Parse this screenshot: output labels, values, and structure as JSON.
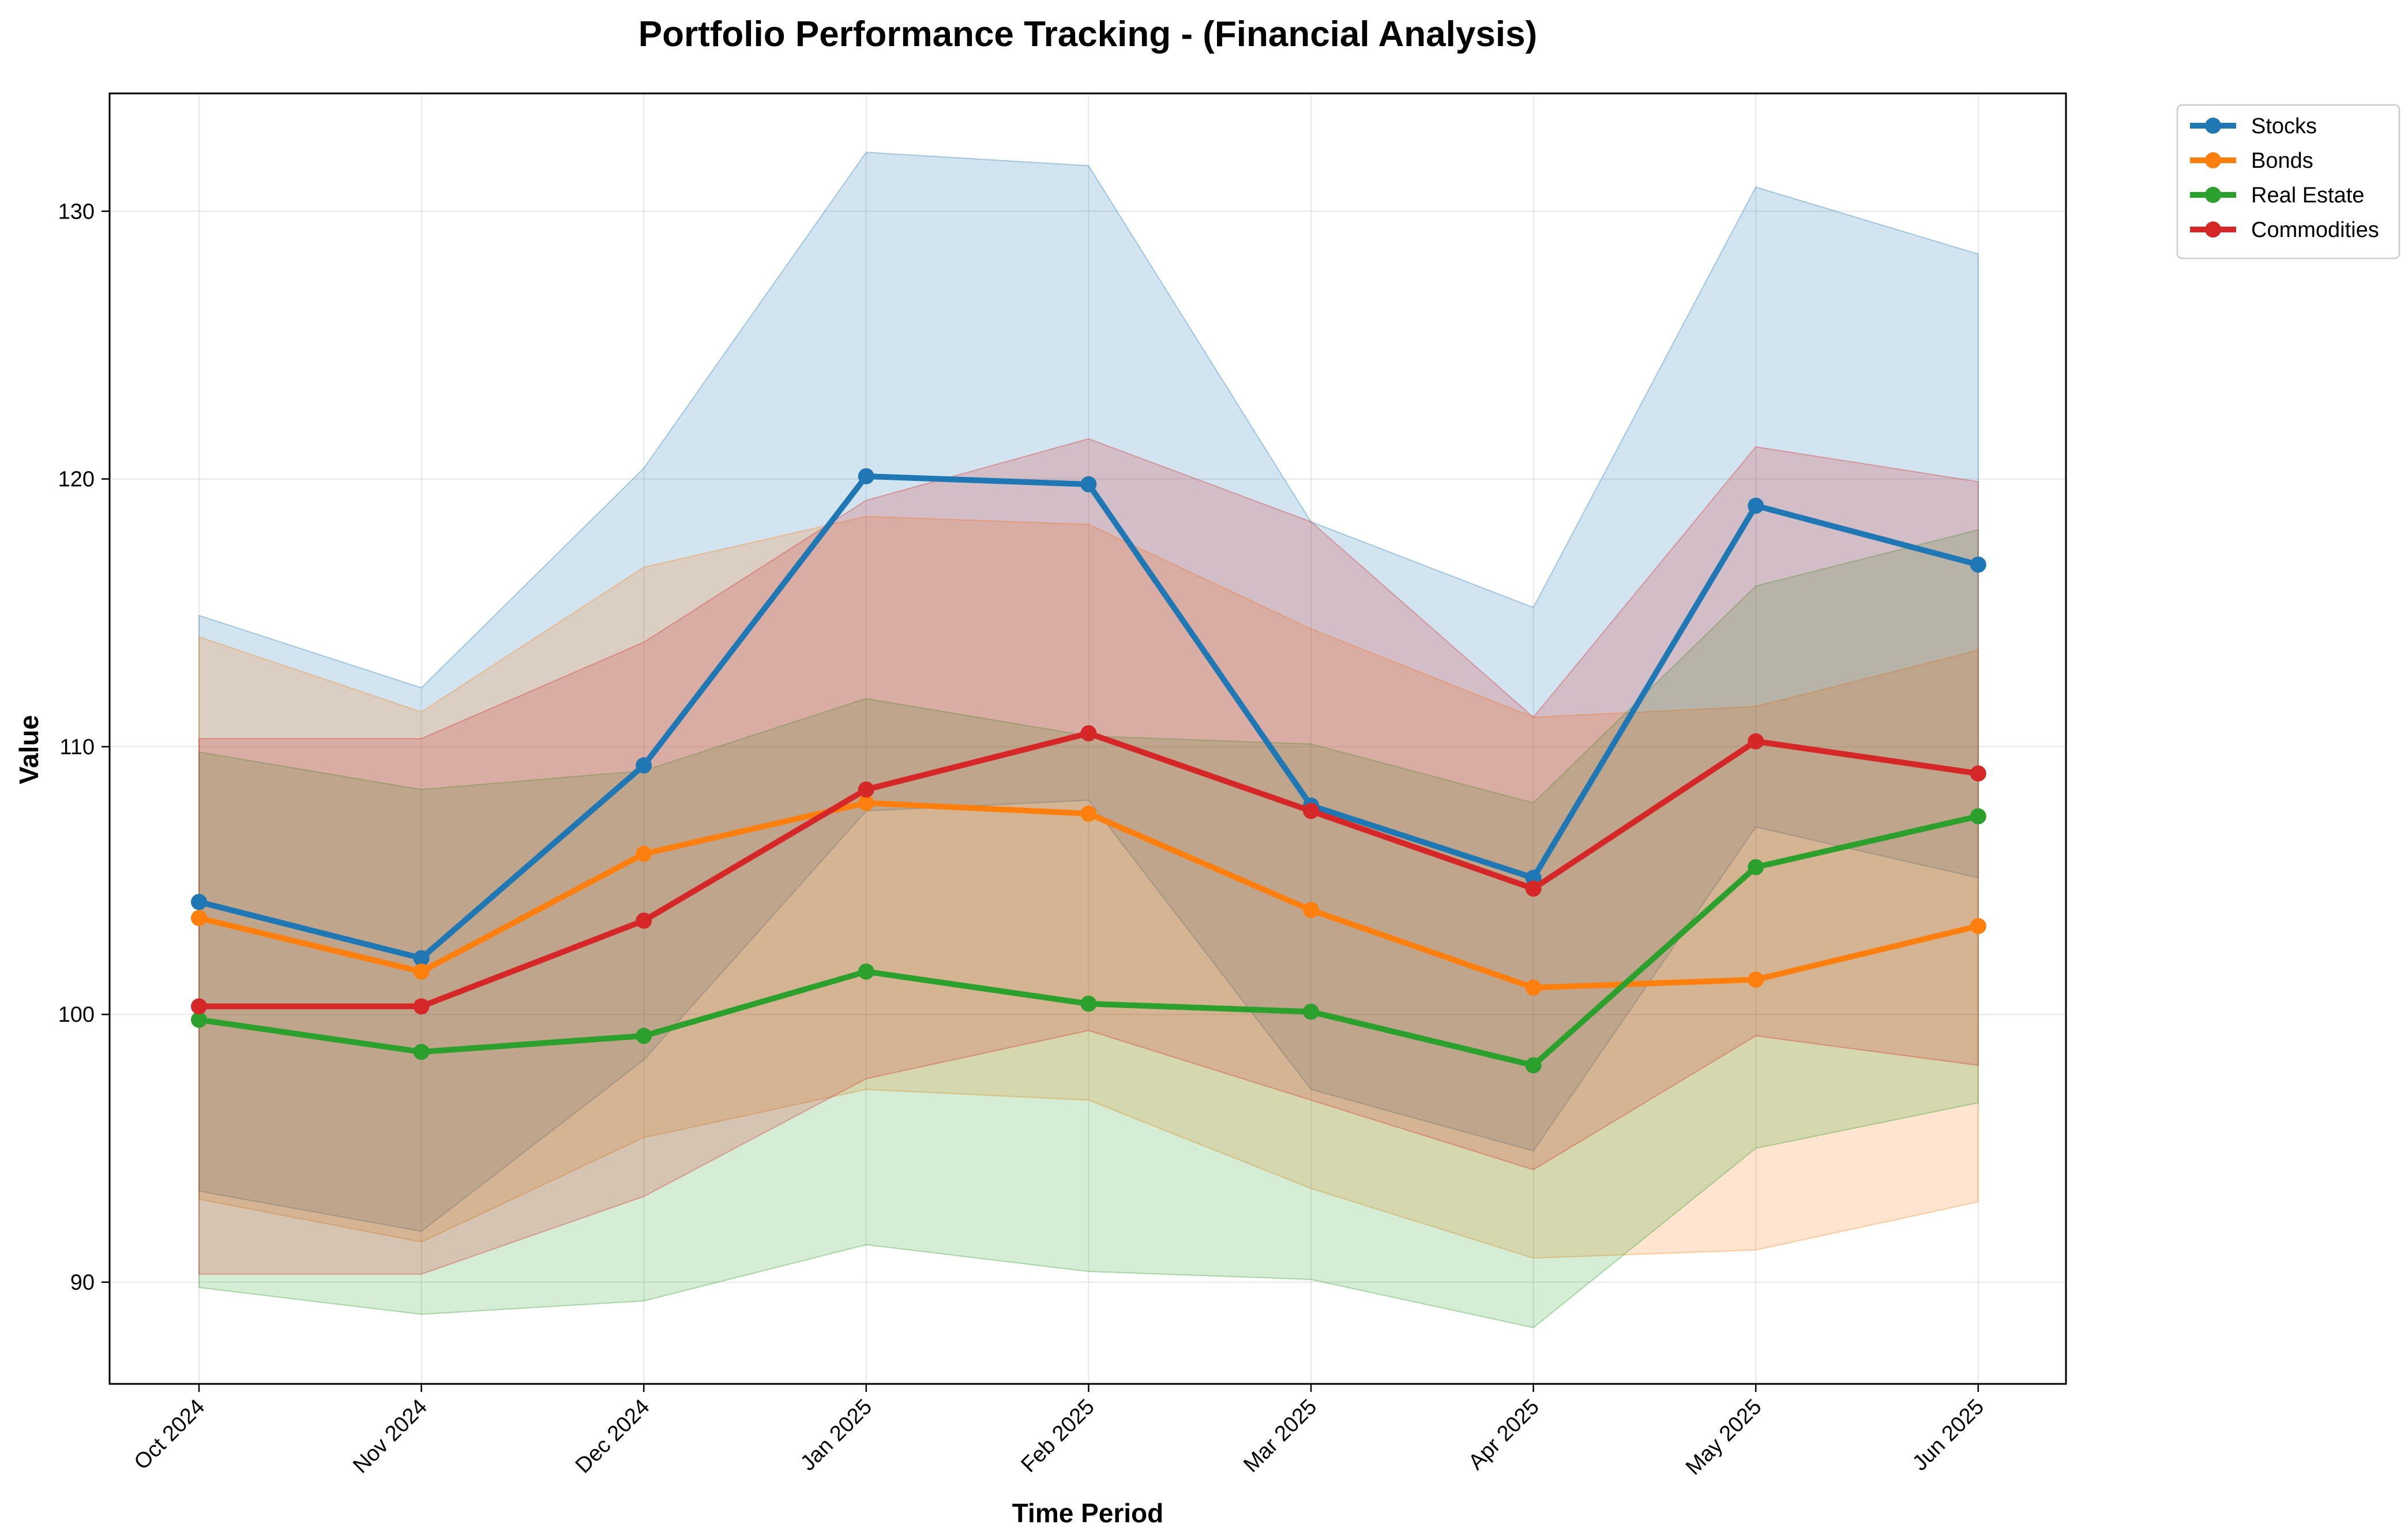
{
  "chart_data": {
    "type": "line",
    "title": "Portfolio Performance Tracking - (Financial Analysis)",
    "xlabel": "Time Period",
    "ylabel": "Value",
    "categories": [
      "Oct 2024",
      "Nov 2024",
      "Dec 2024",
      "Jan 2025",
      "Feb 2025",
      "Mar 2025",
      "Apr 2025",
      "May 2025",
      "Jun 2025"
    ],
    "ylim": [
      86.2,
      134.4
    ],
    "yticks": [
      90,
      100,
      110,
      120,
      130
    ],
    "grid": true,
    "legend_position": "top-right",
    "series": [
      {
        "name": "Stocks",
        "color": "#1f77b4",
        "values": [
          104.2,
          102.1,
          109.3,
          120.1,
          119.8,
          107.8,
          105.1,
          119.0,
          116.8
        ],
        "band_upper": [
          114.9,
          112.2,
          120.4,
          132.2,
          131.7,
          118.4,
          115.2,
          130.9,
          128.4
        ],
        "band_lower": [
          93.4,
          91.9,
          98.3,
          107.6,
          108.0,
          97.2,
          94.9,
          107.0,
          105.1
        ]
      },
      {
        "name": "Bonds",
        "color": "#ff7f0e",
        "values": [
          103.6,
          101.6,
          106.0,
          107.9,
          107.5,
          103.9,
          101.0,
          101.3,
          103.3
        ],
        "band_upper": [
          114.1,
          111.3,
          116.7,
          118.6,
          118.3,
          114.4,
          111.1,
          111.5,
          113.6
        ],
        "band_lower": [
          93.1,
          91.5,
          95.4,
          97.2,
          96.8,
          93.5,
          90.9,
          91.2,
          93.0
        ]
      },
      {
        "name": "Real Estate",
        "color": "#2ca02c",
        "values": [
          99.8,
          98.6,
          99.2,
          101.6,
          100.4,
          100.1,
          98.1,
          105.5,
          107.4
        ],
        "band_upper": [
          109.8,
          108.4,
          109.1,
          111.8,
          110.4,
          110.1,
          107.9,
          116.0,
          118.1
        ],
        "band_lower": [
          89.8,
          88.8,
          89.3,
          91.4,
          90.4,
          90.1,
          88.3,
          95.0,
          96.7
        ]
      },
      {
        "name": "Commodities",
        "color": "#d62728",
        "values": [
          100.3,
          100.3,
          103.5,
          108.4,
          110.5,
          107.6,
          104.7,
          110.2,
          109.0
        ],
        "band_upper": [
          110.3,
          110.3,
          113.9,
          119.2,
          121.5,
          118.4,
          111.1,
          121.2,
          119.9
        ],
        "band_lower": [
          90.3,
          90.3,
          93.2,
          97.6,
          99.4,
          96.8,
          94.2,
          99.2,
          98.1
        ]
      }
    ]
  }
}
